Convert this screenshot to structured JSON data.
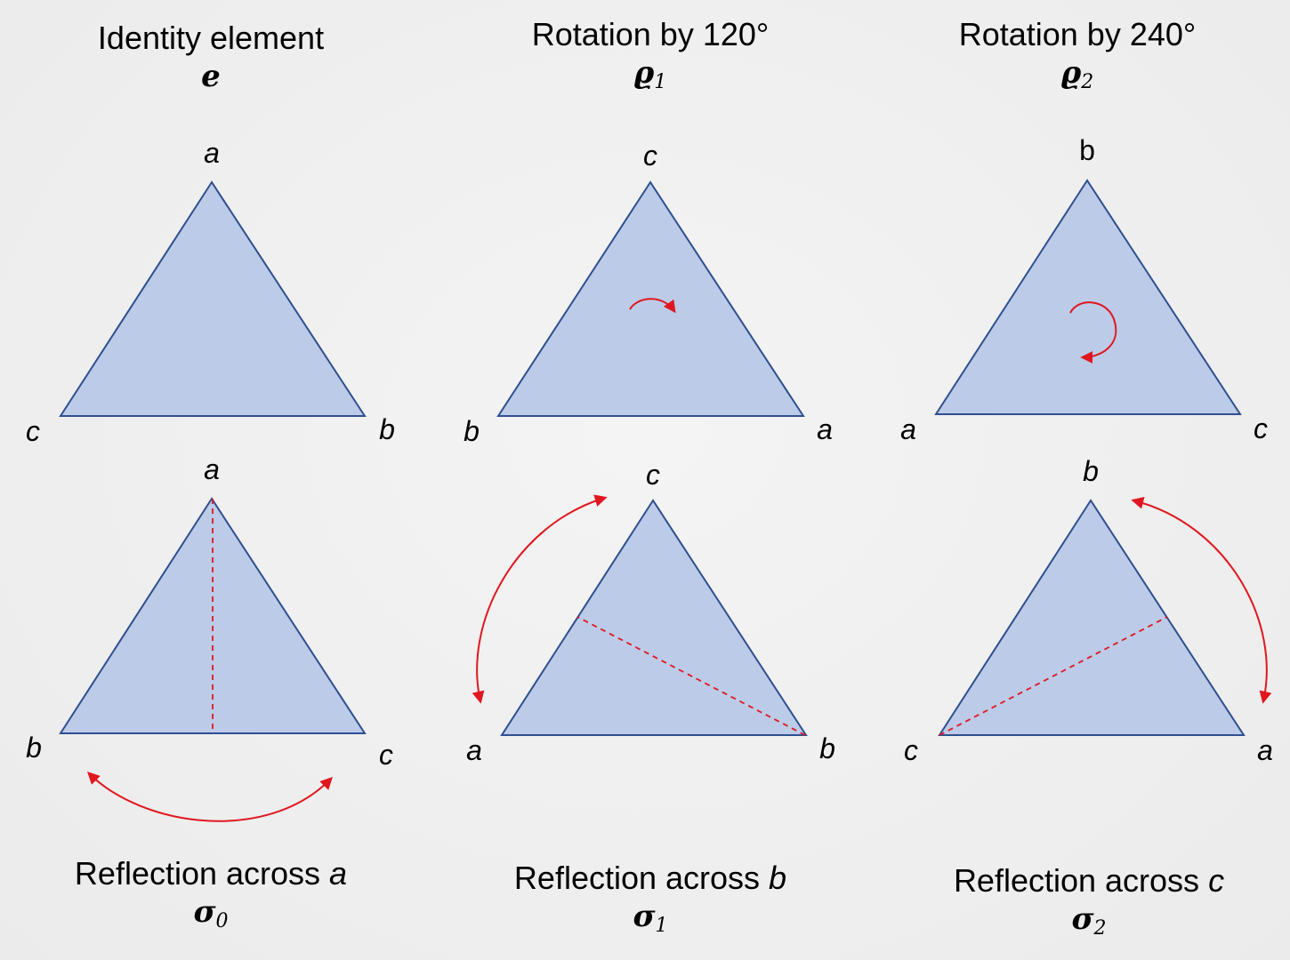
{
  "panels": [
    {
      "id": "identity",
      "caption_text": "Identity element",
      "caption_var": "",
      "symbol": "e",
      "symbol_sub": "",
      "vertices": {
        "top": "a",
        "left": "c",
        "right": "b"
      },
      "vertex_italic": {
        "top": true,
        "left": true,
        "right": true
      }
    },
    {
      "id": "rotation-120",
      "caption_text": "Rotation by 120°",
      "caption_var": "",
      "symbol": "ϱ",
      "symbol_sub": "1",
      "vertices": {
        "top": "c",
        "left": "b",
        "right": "a"
      },
      "vertex_italic": {
        "top": true,
        "left": true,
        "right": true
      }
    },
    {
      "id": "rotation-240",
      "caption_text": "Rotation by 240°",
      "caption_var": "",
      "symbol": "ϱ",
      "symbol_sub": "2",
      "vertices": {
        "top": "b",
        "left": "a",
        "right": "c"
      },
      "vertex_italic": {
        "top": false,
        "left": true,
        "right": true
      }
    },
    {
      "id": "reflection-a",
      "caption_text": "Reflection across ",
      "caption_var": "a",
      "symbol": "σ",
      "symbol_sub": "0",
      "vertices": {
        "top": "a",
        "left": "b",
        "right": "c"
      },
      "vertex_italic": {
        "top": true,
        "left": true,
        "right": true
      }
    },
    {
      "id": "reflection-b",
      "caption_text": "Reflection across ",
      "caption_var": "b",
      "symbol": "σ",
      "symbol_sub": "1",
      "vertices": {
        "top": "c",
        "left": "a",
        "right": "b"
      },
      "vertex_italic": {
        "top": true,
        "left": true,
        "right": true
      }
    },
    {
      "id": "reflection-c",
      "caption_text": "Reflection across ",
      "caption_var": "c",
      "symbol": "σ",
      "symbol_sub": "2",
      "vertices": {
        "top": "b",
        "left": "c",
        "right": "a"
      },
      "vertex_italic": {
        "top": true,
        "left": true,
        "right": true
      }
    }
  ],
  "colors": {
    "triangle_fill": "#bccbe8",
    "triangle_stroke": "#2f4f8f",
    "arrow": "#e0171f",
    "text": "#000000"
  }
}
